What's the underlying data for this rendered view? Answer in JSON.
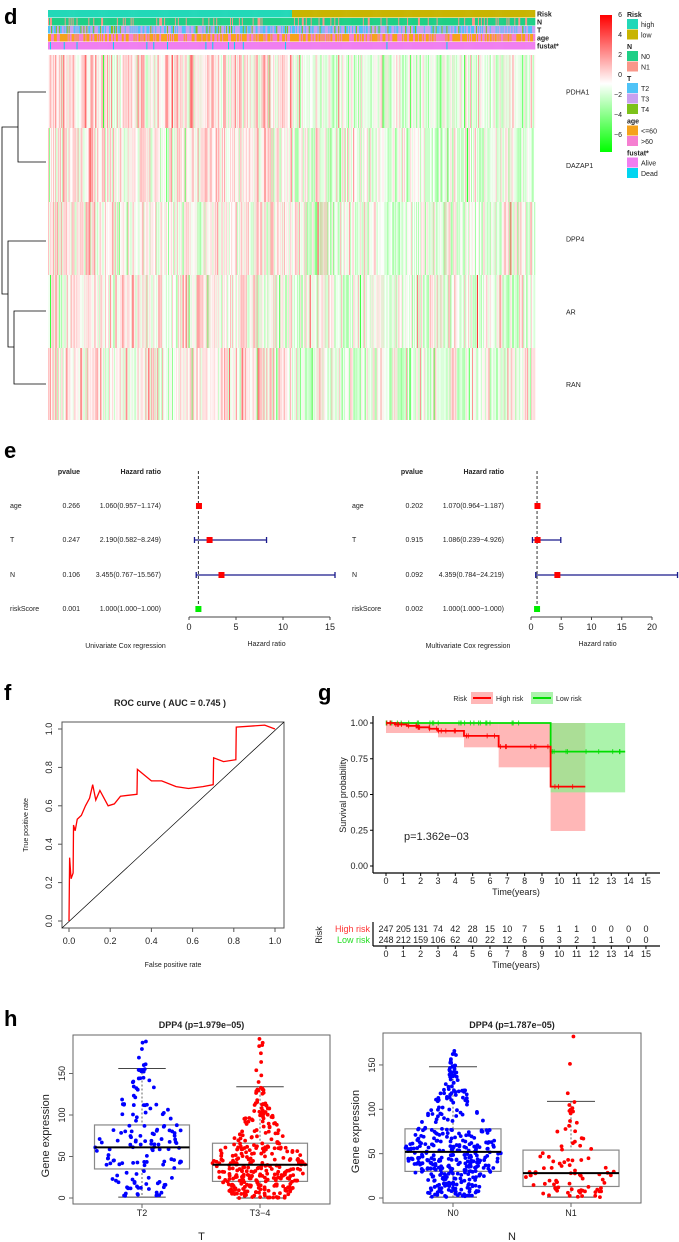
{
  "panel_labels": {
    "d": "d",
    "e": "e",
    "f": "f",
    "g": "g",
    "h": "h"
  },
  "colors": {
    "red": "#ff0000",
    "green": "#00dd00",
    "blue": "#0000ff",
    "navy": "#1a1a8c"
  },
  "chart_data": [
    {
      "type": "heatmap",
      "panel": "d",
      "annotation_rows": [
        "Risk",
        "N",
        "T",
        "age",
        "fustat*"
      ],
      "genes": [
        "PDHA1",
        "DAZAP1",
        "DPP4",
        "AR",
        "RAN"
      ],
      "n_samples": 495,
      "high_risk_fraction": 0.5,
      "value_range": [
        -6,
        6
      ],
      "colorbar_ticks": [
        "6",
        "4",
        "2",
        "0",
        "−2",
        "−4",
        "−6"
      ],
      "legend": [
        {
          "title": "Risk",
          "items": [
            {
              "label": "high",
              "color": "#22d8b8"
            },
            {
              "label": "low",
              "color": "#c8b400"
            }
          ]
        },
        {
          "title": "N",
          "items": [
            {
              "label": "N0",
              "color": "#1ecf86"
            },
            {
              "label": "N1",
              "color": "#f9978a"
            }
          ]
        },
        {
          "title": "T",
          "items": [
            {
              "label": "T2",
              "color": "#4fc3f7"
            },
            {
              "label": "T3",
              "color": "#c9a0f0"
            },
            {
              "label": "T4",
              "color": "#7cc21a"
            }
          ]
        },
        {
          "title": "age",
          "items": [
            {
              "label": "<=60",
              "color": "#f5a21b"
            },
            {
              "label": ">60",
              "color": "#f57fd1"
            }
          ]
        },
        {
          "title": "fustat*",
          "items": [
            {
              "label": "Alive",
              "color": "#f07ef0"
            },
            {
              "label": "Dead",
              "color": "#00d5f0"
            }
          ]
        }
      ]
    },
    {
      "type": "forest",
      "panel": "e-left",
      "title": "Univariate Cox regression",
      "xlabel": "Hazard ratio",
      "col_pvalue": "pvalue",
      "col_hr": "Hazard ratio",
      "xlim": [
        0,
        15
      ],
      "xticks": [
        "0",
        "5",
        "10",
        "15"
      ],
      "rows": [
        {
          "name": "age",
          "pvalue": "0.266",
          "hr_text": "1.060(0.957−1.174)",
          "hr": 1.06,
          "lo": 0.957,
          "hi": 1.174
        },
        {
          "name": "T",
          "pvalue": "0.247",
          "hr_text": "2.190(0.582−8.249)",
          "hr": 2.19,
          "lo": 0.582,
          "hi": 8.249
        },
        {
          "name": "N",
          "pvalue": "0.106",
          "hr_text": "3.455(0.767−15.567)",
          "hr": 3.455,
          "lo": 0.767,
          "hi": 15.567
        },
        {
          "name": "riskScore",
          "pvalue": "0.001",
          "hr_text": "1.000(1.000−1.000)",
          "hr": 1.0,
          "lo": 1.0,
          "hi": 1.0
        }
      ]
    },
    {
      "type": "forest",
      "panel": "e-right",
      "title": "Multivariate Cox regression",
      "xlabel": "Hazard ratio",
      "col_pvalue": "pvalue",
      "col_hr": "Hazard ratio",
      "xlim": [
        0,
        20
      ],
      "xticks": [
        "0",
        "5",
        "10",
        "15",
        "20"
      ],
      "rows": [
        {
          "name": "age",
          "pvalue": "0.202",
          "hr_text": "1.070(0.964−1.187)",
          "hr": 1.07,
          "lo": 0.964,
          "hi": 1.187
        },
        {
          "name": "T",
          "pvalue": "0.915",
          "hr_text": "1.086(0.239−4.926)",
          "hr": 1.086,
          "lo": 0.239,
          "hi": 4.926
        },
        {
          "name": "N",
          "pvalue": "0.092",
          "hr_text": "4.359(0.784−24.219)",
          "hr": 4.359,
          "lo": 0.784,
          "hi": 24.219
        },
        {
          "name": "riskScore",
          "pvalue": "0.002",
          "hr_text": "1.000(1.000−1.000)",
          "hr": 1.0,
          "lo": 1.0,
          "hi": 1.0
        }
      ]
    },
    {
      "type": "line",
      "panel": "f",
      "title": "ROC curve ( AUC =  0.745 )",
      "xlabel": "False positive rate",
      "ylabel": "True positive rate",
      "xlim": [
        0,
        1
      ],
      "ylim": [
        0,
        1
      ],
      "ticks": [
        "0.0",
        "0.2",
        "0.4",
        "0.6",
        "0.8",
        "1.0"
      ],
      "points": [
        [
          0,
          0
        ],
        [
          0.003,
          0.33
        ],
        [
          0.01,
          0.22
        ],
        [
          0.02,
          0.25
        ],
        [
          0.022,
          0.5
        ],
        [
          0.03,
          0.47
        ],
        [
          0.04,
          0.53
        ],
        [
          0.06,
          0.55
        ],
        [
          0.08,
          0.6
        ],
        [
          0.1,
          0.64
        ],
        [
          0.115,
          0.71
        ],
        [
          0.13,
          0.63
        ],
        [
          0.15,
          0.68
        ],
        [
          0.19,
          0.6
        ],
        [
          0.22,
          0.61
        ],
        [
          0.25,
          0.65
        ],
        [
          0.33,
          0.66
        ],
        [
          0.332,
          0.79
        ],
        [
          0.4,
          0.73
        ],
        [
          0.45,
          0.73
        ],
        [
          0.52,
          0.7
        ],
        [
          0.58,
          0.69
        ],
        [
          0.65,
          0.7
        ],
        [
          0.7,
          0.71
        ],
        [
          0.702,
          0.85
        ],
        [
          0.75,
          0.83
        ],
        [
          0.81,
          0.84
        ],
        [
          0.812,
          1.01
        ],
        [
          0.95,
          1.02
        ],
        [
          1,
          1
        ]
      ]
    },
    {
      "type": "line",
      "panel": "g",
      "legend_title": "Risk",
      "series": [
        {
          "name": "High risk",
          "color": "#ff0000",
          "fill": "#ff9999",
          "steps": [
            [
              0,
              1
            ],
            [
              0.5,
              0.99
            ],
            [
              1.2,
              0.98
            ],
            [
              1.8,
              0.97
            ],
            [
              2.5,
              0.96
            ],
            [
              3,
              0.945
            ],
            [
              4.5,
              0.91
            ],
            [
              6.5,
              0.835
            ],
            [
              9.5,
              0.555
            ],
            [
              11.5,
              0.555
            ]
          ],
          "ci": [
            [
              0,
              3,
              0.93,
              1
            ],
            [
              3,
              4.5,
              0.9,
              1
            ],
            [
              4.5,
              6.5,
              0.83,
              1
            ],
            [
              6.5,
              9.5,
              0.69,
              1
            ],
            [
              9.5,
              11.5,
              0.245,
              1
            ]
          ]
        },
        {
          "name": "Low risk",
          "color": "#00dd00",
          "fill": "#88ee88",
          "steps": [
            [
              0,
              1
            ],
            [
              9.5,
              0.8
            ],
            [
              13.8,
              0.8
            ]
          ],
          "ci": [
            [
              9.5,
              13.8,
              0.515,
              1
            ]
          ]
        }
      ],
      "pvalue": "p=1.362e−03",
      "ylabel": "Survival probability",
      "xlabel": "Time(years)",
      "xticks": [
        "0",
        "1",
        "2",
        "3",
        "4",
        "5",
        "6",
        "7",
        "8",
        "9",
        "10",
        "11",
        "12",
        "13",
        "14",
        "15"
      ],
      "yticks": [
        "0.00",
        "0.25",
        "0.50",
        "0.75",
        "1.00"
      ],
      "risk_table": {
        "title": "Risk",
        "rows": [
          {
            "name": "High risk",
            "color": "#ff3333",
            "counts": [
              "247",
              "205",
              "131",
              "74",
              "42",
              "28",
              "15",
              "10",
              "7",
              "5",
              "1",
              "1",
              "0",
              "0",
              "0",
              "0"
            ]
          },
          {
            "name": "Low risk",
            "color": "#22dd22",
            "counts": [
              "248",
              "212",
              "159",
              "106",
              "62",
              "40",
              "22",
              "12",
              "6",
              "6",
              "3",
              "2",
              "1",
              "1",
              "0",
              "0"
            ]
          }
        ]
      }
    },
    {
      "type": "box",
      "panel": "h-left",
      "title": "DPP4 (p=1.979e−05)",
      "xlabel": "T",
      "ylabel": "Gene expression",
      "yticks": [
        "0",
        "50",
        "100",
        "150"
      ],
      "groups": [
        {
          "name": "T2",
          "color": "#0000ff",
          "n": 150,
          "min": 1,
          "q1": 35,
          "median": 61,
          "q3": 88,
          "whisker_hi": 156,
          "max": 190
        },
        {
          "name": "T3−4",
          "color": "#ff0000",
          "n": 340,
          "min": 0,
          "q1": 20,
          "median": 40,
          "q3": 66,
          "whisker_hi": 134,
          "max": 195
        }
      ]
    },
    {
      "type": "box",
      "panel": "h-right",
      "title": "DPP4 (p=1.787e−05)",
      "xlabel": "N",
      "ylabel": "Gene expression",
      "yticks": [
        "0",
        "50",
        "100",
        "150"
      ],
      "groups": [
        {
          "name": "N0",
          "color": "#0000ff",
          "n": 400,
          "min": 1,
          "q1": 30,
          "median": 52,
          "q3": 78,
          "whisker_hi": 148,
          "max": 168
        },
        {
          "name": "N1",
          "color": "#ff0000",
          "n": 90,
          "min": 1,
          "q1": 13,
          "median": 28,
          "q3": 54,
          "whisker_hi": 109,
          "max": 185
        }
      ]
    }
  ]
}
